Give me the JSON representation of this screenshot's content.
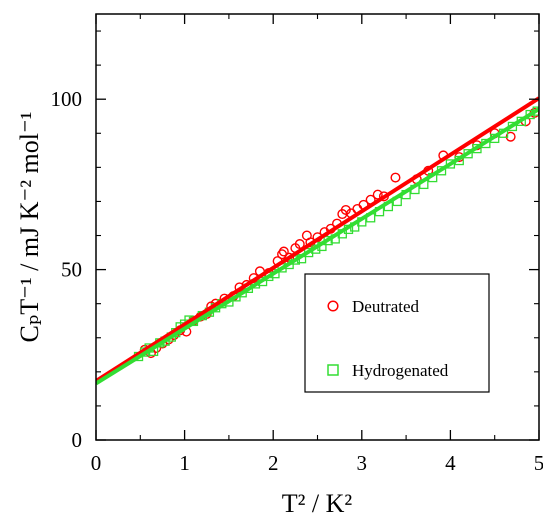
{
  "chart_data": {
    "type": "scatter",
    "xlabel": "T² / K²",
    "ylabel": "CₚT⁻¹ / mJ K⁻² mol⁻¹",
    "xlim": [
      0,
      5
    ],
    "ylim": [
      0,
      125
    ],
    "xticks": [
      0,
      1,
      2,
      3,
      4,
      5
    ],
    "yticks": [
      0,
      50,
      100
    ],
    "grid": false,
    "legend_position": "lower-right",
    "series": [
      {
        "name": "Deutrated",
        "marker": "circle",
        "color": "#ff0000",
        "fit": {
          "intercept": 17.3,
          "slope": 16.6
        },
        "points": [
          [
            0.55,
            26.5
          ],
          [
            0.62,
            25.5
          ],
          [
            0.68,
            27.0
          ],
          [
            0.75,
            28.3
          ],
          [
            0.82,
            29.5
          ],
          [
            0.88,
            30.8
          ],
          [
            0.95,
            32.2
          ],
          [
            1.02,
            31.8
          ],
          [
            1.1,
            35.0
          ],
          [
            1.18,
            36.2
          ],
          [
            1.25,
            37.0
          ],
          [
            1.3,
            39.2
          ],
          [
            1.35,
            40.0
          ],
          [
            1.45,
            41.5
          ],
          [
            1.55,
            42.2
          ],
          [
            1.62,
            44.8
          ],
          [
            1.7,
            45.5
          ],
          [
            1.78,
            47.5
          ],
          [
            1.85,
            49.5
          ],
          [
            1.95,
            49.0
          ],
          [
            2.05,
            52.5
          ],
          [
            2.1,
            54.5
          ],
          [
            2.12,
            55.3
          ],
          [
            2.18,
            53.5
          ],
          [
            2.25,
            56.3
          ],
          [
            2.3,
            57.5
          ],
          [
            2.38,
            60.0
          ],
          [
            2.42,
            58.0
          ],
          [
            2.5,
            59.5
          ],
          [
            2.58,
            61.0
          ],
          [
            2.65,
            62.0
          ],
          [
            2.72,
            63.5
          ],
          [
            2.78,
            66.3
          ],
          [
            2.82,
            67.5
          ],
          [
            2.88,
            66.5
          ],
          [
            2.95,
            67.8
          ],
          [
            3.02,
            69.0
          ],
          [
            3.1,
            70.5
          ],
          [
            3.18,
            72.0
          ],
          [
            3.25,
            71.5
          ],
          [
            3.38,
            77.0
          ],
          [
            3.62,
            76.5
          ],
          [
            3.75,
            79.0
          ],
          [
            3.92,
            83.5
          ],
          [
            4.1,
            83.0
          ],
          [
            4.3,
            86.5
          ],
          [
            4.5,
            90.0
          ],
          [
            4.68,
            89.0
          ],
          [
            4.85,
            93.5
          ],
          [
            4.95,
            96.0
          ]
        ]
      },
      {
        "name": "Hydrogenated",
        "marker": "square",
        "color": "#33dd33",
        "fit": {
          "intercept": 16.6,
          "slope": 16.1
        },
        "points": [
          [
            0.48,
            24.5
          ],
          [
            0.55,
            25.8
          ],
          [
            0.6,
            27.0
          ],
          [
            0.65,
            26.0
          ],
          [
            0.72,
            28.5
          ],
          [
            0.78,
            29.0
          ],
          [
            0.85,
            30.2
          ],
          [
            0.9,
            31.5
          ],
          [
            0.95,
            33.2
          ],
          [
            1.0,
            34.0
          ],
          [
            1.05,
            35.2
          ],
          [
            1.1,
            34.8
          ],
          [
            1.2,
            36.5
          ],
          [
            1.28,
            37.5
          ],
          [
            1.35,
            38.8
          ],
          [
            1.42,
            40.0
          ],
          [
            1.5,
            40.5
          ],
          [
            1.58,
            42.0
          ],
          [
            1.65,
            43.2
          ],
          [
            1.72,
            44.5
          ],
          [
            1.8,
            45.8
          ],
          [
            1.88,
            46.5
          ],
          [
            1.95,
            48.0
          ],
          [
            2.02,
            48.8
          ],
          [
            2.1,
            50.5
          ],
          [
            2.18,
            51.5
          ],
          [
            2.25,
            52.8
          ],
          [
            2.32,
            53.2
          ],
          [
            2.4,
            55.0
          ],
          [
            2.48,
            56.0
          ],
          [
            2.55,
            56.8
          ],
          [
            2.62,
            58.5
          ],
          [
            2.7,
            59.0
          ],
          [
            2.78,
            60.5
          ],
          [
            2.85,
            61.8
          ],
          [
            2.92,
            62.5
          ],
          [
            3.0,
            64.0
          ],
          [
            3.1,
            65.2
          ],
          [
            3.2,
            67.0
          ],
          [
            3.3,
            68.5
          ],
          [
            3.4,
            70.0
          ],
          [
            3.5,
            72.0
          ],
          [
            3.6,
            73.5
          ],
          [
            3.7,
            75.0
          ],
          [
            3.8,
            77.0
          ],
          [
            3.9,
            79.0
          ],
          [
            4.0,
            81.0
          ],
          [
            4.1,
            82.0
          ],
          [
            4.2,
            84.0
          ],
          [
            4.3,
            85.5
          ],
          [
            4.4,
            87.0
          ],
          [
            4.5,
            88.5
          ],
          [
            4.6,
            90.0
          ],
          [
            4.7,
            92.0
          ],
          [
            4.8,
            93.5
          ],
          [
            4.9,
            95.5
          ],
          [
            4.98,
            96.5
          ]
        ]
      }
    ]
  }
}
